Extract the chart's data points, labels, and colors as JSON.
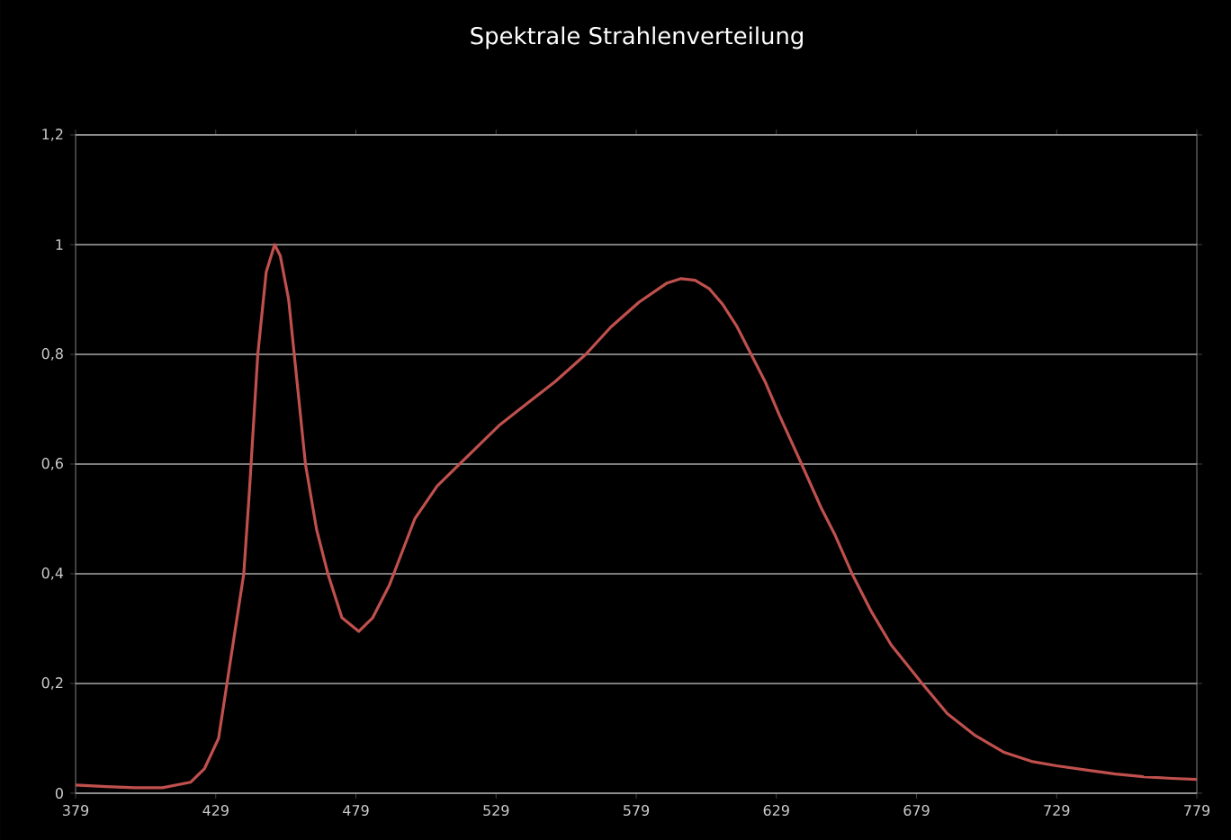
{
  "chart_data": {
    "type": "line",
    "title": "Spektrale Strahlenverteilung",
    "x": [
      379,
      390,
      400,
      410,
      420,
      425,
      430,
      433,
      436,
      439,
      441,
      444,
      447,
      450,
      452,
      455,
      457,
      461,
      465,
      469,
      474,
      480,
      485,
      488,
      491,
      494,
      500,
      508,
      516,
      530,
      540,
      550,
      561,
      570,
      580,
      590,
      595,
      600,
      605,
      610,
      615,
      620,
      625,
      630,
      638,
      645,
      650,
      656,
      663,
      670,
      681,
      690,
      700,
      710,
      720,
      729,
      740,
      750,
      760,
      770,
      779
    ],
    "series": [
      {
        "color": "#c0504d",
        "values": [
          0.015,
          0.012,
          0.01,
          0.01,
          0.02,
          0.045,
          0.1,
          0.2,
          0.3,
          0.4,
          0.55,
          0.8,
          0.95,
          1.0,
          0.98,
          0.9,
          0.8,
          0.6,
          0.48,
          0.4,
          0.32,
          0.295,
          0.32,
          0.35,
          0.38,
          0.42,
          0.5,
          0.56,
          0.6,
          0.67,
          0.71,
          0.75,
          0.8,
          0.85,
          0.895,
          0.93,
          0.938,
          0.935,
          0.92,
          0.89,
          0.85,
          0.8,
          0.75,
          0.69,
          0.6,
          0.52,
          0.47,
          0.4,
          0.33,
          0.27,
          0.2,
          0.145,
          0.105,
          0.075,
          0.058,
          0.05,
          0.042,
          0.035,
          0.03,
          0.027,
          0.025
        ]
      }
    ],
    "xlim": [
      379,
      779
    ],
    "ylim": [
      0,
      1.2
    ],
    "xticks": [
      379,
      429,
      479,
      529,
      579,
      629,
      679,
      729,
      779
    ],
    "yticks": [
      {
        "value": 0,
        "label": "0"
      },
      {
        "value": 0.2,
        "label": "0,2"
      },
      {
        "value": 0.4,
        "label": "0,4"
      },
      {
        "value": 0.6,
        "label": "0,6"
      },
      {
        "value": 0.8,
        "label": "0,8"
      },
      {
        "value": 1,
        "label": "1"
      },
      {
        "value": 1.2,
        "label": "1,2"
      }
    ],
    "grid": "y",
    "marker": "none",
    "line_style": "solid"
  }
}
